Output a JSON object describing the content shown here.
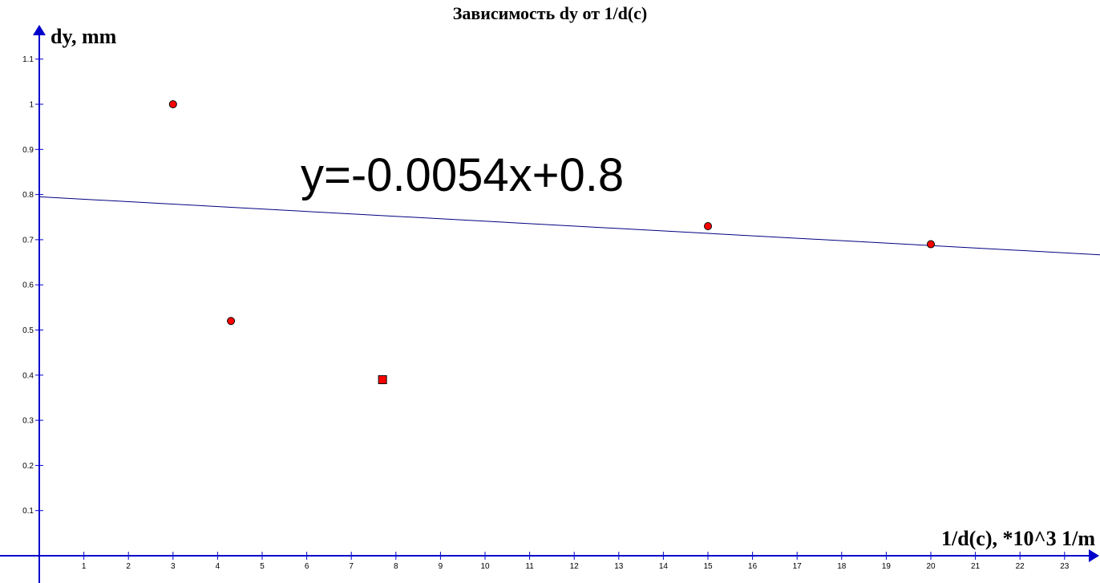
{
  "chart_data": {
    "type": "scatter",
    "title": "Зависимость dy от 1/d(c)",
    "xlabel": "1/d(c), *10^3  1/m",
    "ylabel": "dy, mm",
    "xlim": [
      0,
      23.4
    ],
    "ylim": [
      0,
      1.15
    ],
    "x_ticks": [
      1,
      2,
      3,
      4,
      5,
      6,
      7,
      8,
      9,
      10,
      11,
      12,
      13,
      14,
      15,
      16,
      17,
      18,
      19,
      20,
      21,
      22,
      23
    ],
    "y_ticks": [
      0.1,
      0.2,
      0.3,
      0.4,
      0.5,
      0.6,
      0.7,
      0.8,
      0.9,
      1,
      1.1
    ],
    "grid": false,
    "series": [
      {
        "marker": "circle",
        "color": "#ff0000",
        "points": [
          {
            "x": 3.0,
            "y": 1.0
          },
          {
            "x": 4.3,
            "y": 0.52
          },
          {
            "x": 15.0,
            "y": 0.73
          },
          {
            "x": 20.0,
            "y": 0.69
          }
        ]
      },
      {
        "marker": "square",
        "color": "#ff0000",
        "points": [
          {
            "x": 7.7,
            "y": 0.39
          }
        ]
      }
    ],
    "trendline": {
      "equation": "y=-0.0054x+0.8",
      "slope": -0.0054,
      "intercept": 0.795,
      "color": "#000080"
    },
    "axis_color": "#0000cc"
  }
}
